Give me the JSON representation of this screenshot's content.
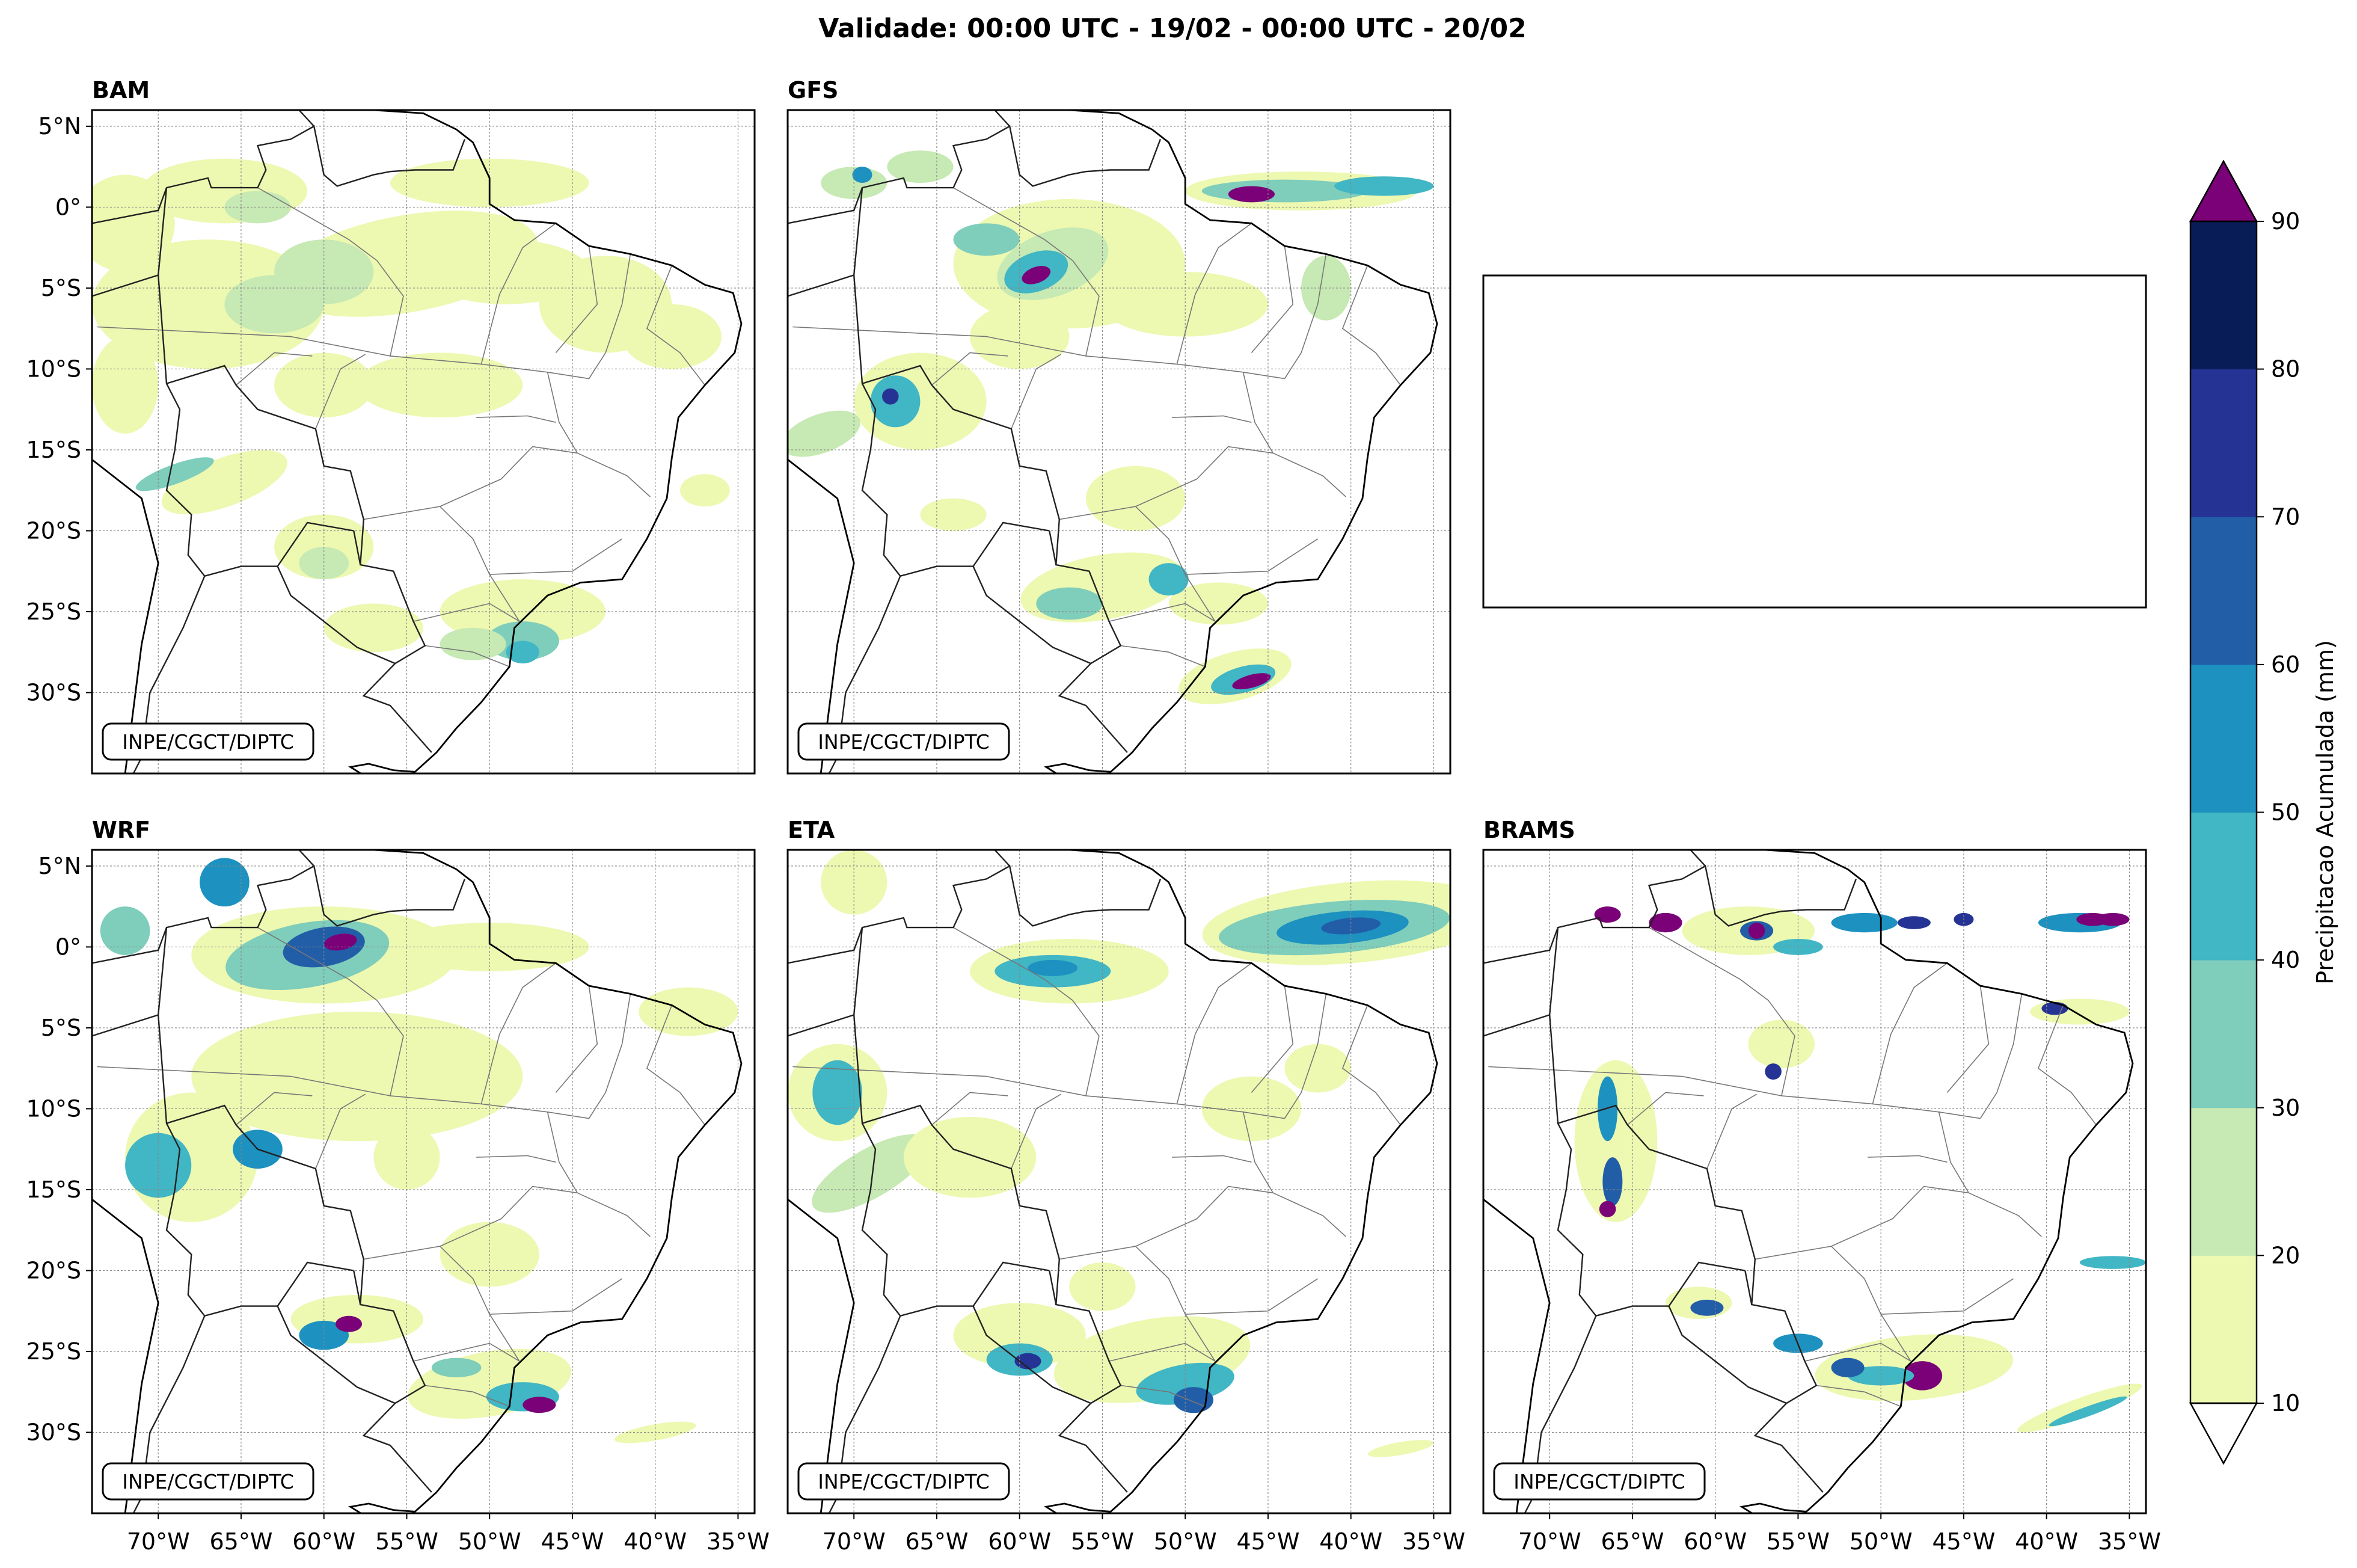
{
  "title": "Validade: 00:00 UTC - 19/02 - 00:00 UTC - 20/02",
  "watermark": "INPE/CGCT/DIPTC",
  "panels": [
    {
      "id": "bam",
      "label": "BAM",
      "style": "weak"
    },
    {
      "id": "gfs",
      "label": "GFS",
      "style": "mod"
    },
    {
      "id": "empty",
      "label": "",
      "style": "empty"
    },
    {
      "id": "wrf",
      "label": "WRF",
      "style": "wrf"
    },
    {
      "id": "eta",
      "label": "ETA",
      "style": "eta"
    },
    {
      "id": "brams",
      "label": "BRAMS",
      "style": "brams"
    }
  ],
  "lat_labels": [
    "5°N",
    "0°",
    "5°S",
    "10°S",
    "15°S",
    "20°S",
    "25°S",
    "30°S"
  ],
  "lat_values": [
    5,
    0,
    -5,
    -10,
    -15,
    -20,
    -25,
    -30
  ],
  "lon_labels": [
    "70°W",
    "65°W",
    "60°W",
    "55°W",
    "50°W",
    "45°W",
    "40°W",
    "35°W"
  ],
  "lon_values": [
    -70,
    -65,
    -60,
    -55,
    -50,
    -45,
    -40,
    -35
  ],
  "extent": {
    "lon_min": -74,
    "lon_max": -34,
    "lat_min": -35,
    "lat_max": 6
  },
  "colorbar": {
    "label": "Precipitacao Acumulada (mm)",
    "ticks": [
      "10",
      "20",
      "30",
      "40",
      "50",
      "60",
      "70",
      "80",
      "90"
    ],
    "colors": [
      "#edf8b1",
      "#c7e9b4",
      "#7fcdbb",
      "#41b6c4",
      "#1d91c0",
      "#225ea8",
      "#253494",
      "#081d58"
    ],
    "over_color": "#7a0177",
    "under_color": "#ffffff"
  }
}
